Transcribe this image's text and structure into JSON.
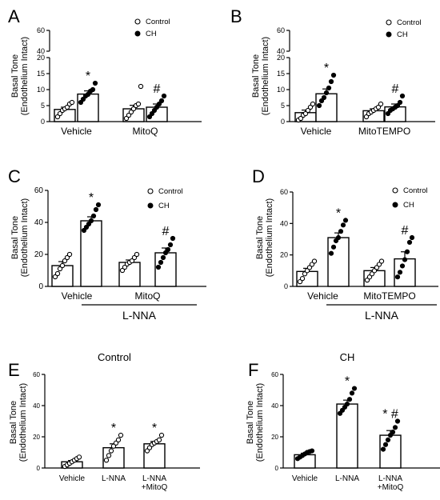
{
  "chart_data": [
    {
      "type": "bar",
      "panel_letter": "A",
      "ylabel": [
        "Basal Tone",
        "(Endothelium Intact)"
      ],
      "ylim": [
        0,
        60
      ],
      "axis_break": [
        20,
        40
      ],
      "yticks": [
        0,
        5,
        10,
        15,
        20,
        40,
        60
      ],
      "group_labels": [
        "Vehicle",
        "MitoQ"
      ],
      "legend": {
        "placement": "top-right",
        "items": [
          {
            "label": "Control",
            "marker": "open"
          },
          {
            "label": "CH",
            "marker": "filled"
          }
        ]
      },
      "series": [
        {
          "name": "Control",
          "marker": "open"
        },
        {
          "name": "CH",
          "marker": "filled"
        }
      ],
      "bars": [
        {
          "group": 0,
          "series": 0,
          "mean": 3.8,
          "sem": 0.7,
          "points": [
            1.5,
            2.5,
            3.5,
            4.0,
            4.5,
            5.5,
            6.0
          ]
        },
        {
          "group": 0,
          "series": 1,
          "mean": 8.6,
          "sem": 1.0,
          "points": [
            6.0,
            7.0,
            8.0,
            8.5,
            9.5,
            10.0,
            12.0
          ],
          "annotation": "*"
        },
        {
          "group": 1,
          "series": 0,
          "mean": 4.0,
          "sem": 1.1,
          "points": [
            1.0,
            2.0,
            3.0,
            4.0,
            5.0,
            5.5,
            11.0
          ]
        },
        {
          "group": 1,
          "series": 1,
          "mean": 4.5,
          "sem": 1.0,
          "points": [
            1.5,
            2.5,
            3.5,
            4.5,
            5.5,
            6.5,
            8.0
          ],
          "annotation": "#"
        }
      ]
    },
    {
      "type": "bar",
      "panel_letter": "B",
      "ylabel": [
        "Basal Tone",
        "(Endothelium Intact)"
      ],
      "ylim": [
        0,
        60
      ],
      "axis_break": [
        20,
        40
      ],
      "yticks": [
        0,
        5,
        10,
        15,
        20,
        40,
        60
      ],
      "group_labels": [
        "Vehicle",
        "MitoTEMPO"
      ],
      "legend": {
        "placement": "top-right",
        "items": [
          {
            "label": "Control",
            "marker": "open"
          },
          {
            "label": "CH",
            "marker": "filled"
          }
        ]
      },
      "series": [
        {
          "name": "Control",
          "marker": "open"
        },
        {
          "name": "CH",
          "marker": "filled"
        }
      ],
      "bars": [
        {
          "group": 0,
          "series": 0,
          "mean": 2.8,
          "sem": 0.8,
          "points": [
            0.5,
            1.0,
            2.0,
            2.5,
            3.5,
            4.5,
            5.5
          ]
        },
        {
          "group": 0,
          "series": 1,
          "mean": 8.7,
          "sem": 1.5,
          "points": [
            5.0,
            6.5,
            7.5,
            9.0,
            10.5,
            12.5,
            14.5
          ],
          "annotation": "*"
        },
        {
          "group": 1,
          "series": 0,
          "mean": 3.4,
          "sem": 0.6,
          "points": [
            1.5,
            2.5,
            3.0,
            3.5,
            4.0,
            4.5,
            5.5
          ]
        },
        {
          "group": 1,
          "series": 1,
          "mean": 4.6,
          "sem": 0.9,
          "points": [
            2.5,
            3.5,
            4.0,
            4.5,
            5.0,
            6.0,
            8.0
          ],
          "annotation": "#"
        }
      ]
    },
    {
      "type": "bar",
      "panel_letter": "C",
      "ylabel": [
        "Basal Tone",
        "(Endothelium Intact)"
      ],
      "ylim": [
        0,
        60
      ],
      "yticks": [
        0,
        20,
        40,
        60
      ],
      "group_labels": [
        "Vehicle",
        "MitoQ"
      ],
      "bracket_label": "L-NNA",
      "legend": {
        "placement": "top-right",
        "items": [
          {
            "label": "Control",
            "marker": "open"
          },
          {
            "label": "CH",
            "marker": "filled"
          }
        ]
      },
      "series": [
        {
          "name": "Control",
          "marker": "open"
        },
        {
          "name": "CH",
          "marker": "filled"
        }
      ],
      "bars": [
        {
          "group": 0,
          "series": 0,
          "mean": 13,
          "sem": 2.5,
          "points": [
            6,
            8,
            11,
            13,
            16,
            18,
            20
          ]
        },
        {
          "group": 0,
          "series": 1,
          "mean": 41,
          "sem": 2.5,
          "points": [
            35,
            37,
            39,
            41,
            44,
            48,
            51
          ],
          "annotation": "*"
        },
        {
          "group": 1,
          "series": 0,
          "mean": 15,
          "sem": 1.5,
          "points": [
            10,
            12,
            14,
            15,
            16,
            18,
            20
          ]
        },
        {
          "group": 1,
          "series": 1,
          "mean": 21,
          "sem": 3.0,
          "points": [
            12,
            15,
            18,
            21,
            23,
            26,
            30
          ],
          "annotation": "#"
        }
      ]
    },
    {
      "type": "bar",
      "panel_letter": "D",
      "ylabel": [
        "Basal Tone",
        "(Endothelium Intact)"
      ],
      "ylim": [
        0,
        60
      ],
      "yticks": [
        0,
        20,
        40,
        60
      ],
      "group_labels": [
        "Vehicle",
        "MitoTEMPO"
      ],
      "bracket_label": "L-NNA",
      "legend": {
        "placement": "top-right",
        "items": [
          {
            "label": "Control",
            "marker": "open"
          },
          {
            "label": "CH",
            "marker": "filled"
          }
        ]
      },
      "series": [
        {
          "name": "Control",
          "marker": "open"
        },
        {
          "name": "CH",
          "marker": "filled"
        }
      ],
      "bars": [
        {
          "group": 0,
          "series": 0,
          "mean": 9.5,
          "sem": 2.0,
          "points": [
            3,
            5,
            8,
            10,
            12,
            14,
            16
          ]
        },
        {
          "group": 0,
          "series": 1,
          "mean": 31,
          "sem": 3.0,
          "points": [
            21,
            25,
            29,
            31,
            35,
            39,
            42
          ],
          "annotation": "*"
        },
        {
          "group": 1,
          "series": 0,
          "mean": 10,
          "sem": 2.0,
          "points": [
            4,
            6,
            8,
            10,
            12,
            14,
            16
          ]
        },
        {
          "group": 1,
          "series": 1,
          "mean": 17.5,
          "sem": 4.5,
          "points": [
            6,
            9,
            13,
            17,
            22,
            28,
            31
          ],
          "annotation": "#"
        }
      ]
    },
    {
      "type": "bar",
      "panel_letter": "E",
      "title": "Control",
      "ylabel": [
        "Basal Tone",
        "(Endothelium Intact)"
      ],
      "ylim": [
        0,
        60
      ],
      "yticks": [
        0,
        20,
        40,
        60
      ],
      "categories": [
        [
          "Vehicle"
        ],
        [
          "L-NNA"
        ],
        [
          "L-NNA",
          "+MitoQ"
        ]
      ],
      "marker": "open",
      "bars": [
        {
          "mean": 4,
          "sem": 0.8,
          "points": [
            1,
            2,
            3,
            4,
            5,
            6,
            7
          ]
        },
        {
          "mean": 13,
          "sem": 2.5,
          "points": [
            5,
            8,
            11,
            14,
            16,
            18,
            21
          ],
          "annotation": "*"
        },
        {
          "mean": 15.5,
          "sem": 1.5,
          "points": [
            11,
            13,
            15,
            16,
            17,
            18,
            21
          ],
          "annotation": "*"
        }
      ]
    },
    {
      "type": "bar",
      "panel_letter": "F",
      "title": "CH",
      "ylabel": [
        "Basal Tone",
        "(Endothelium Intact)"
      ],
      "ylim": [
        0,
        60
      ],
      "yticks": [
        0,
        20,
        40,
        60
      ],
      "categories": [
        [
          "Vehicle"
        ],
        [
          "L-NNA"
        ],
        [
          "L-NNA",
          "+MitoQ"
        ]
      ],
      "marker": "filled",
      "bars": [
        {
          "mean": 8.5,
          "sem": 1.0,
          "points": [
            6,
            7,
            8,
            9,
            10,
            10.5,
            11
          ]
        },
        {
          "mean": 41,
          "sem": 2.5,
          "points": [
            35,
            37,
            39,
            41,
            44,
            48,
            51
          ],
          "annotation": "*"
        },
        {
          "mean": 21,
          "sem": 3.0,
          "points": [
            12,
            15,
            18,
            21,
            23,
            26,
            30
          ],
          "annotation": "* #"
        }
      ]
    }
  ]
}
